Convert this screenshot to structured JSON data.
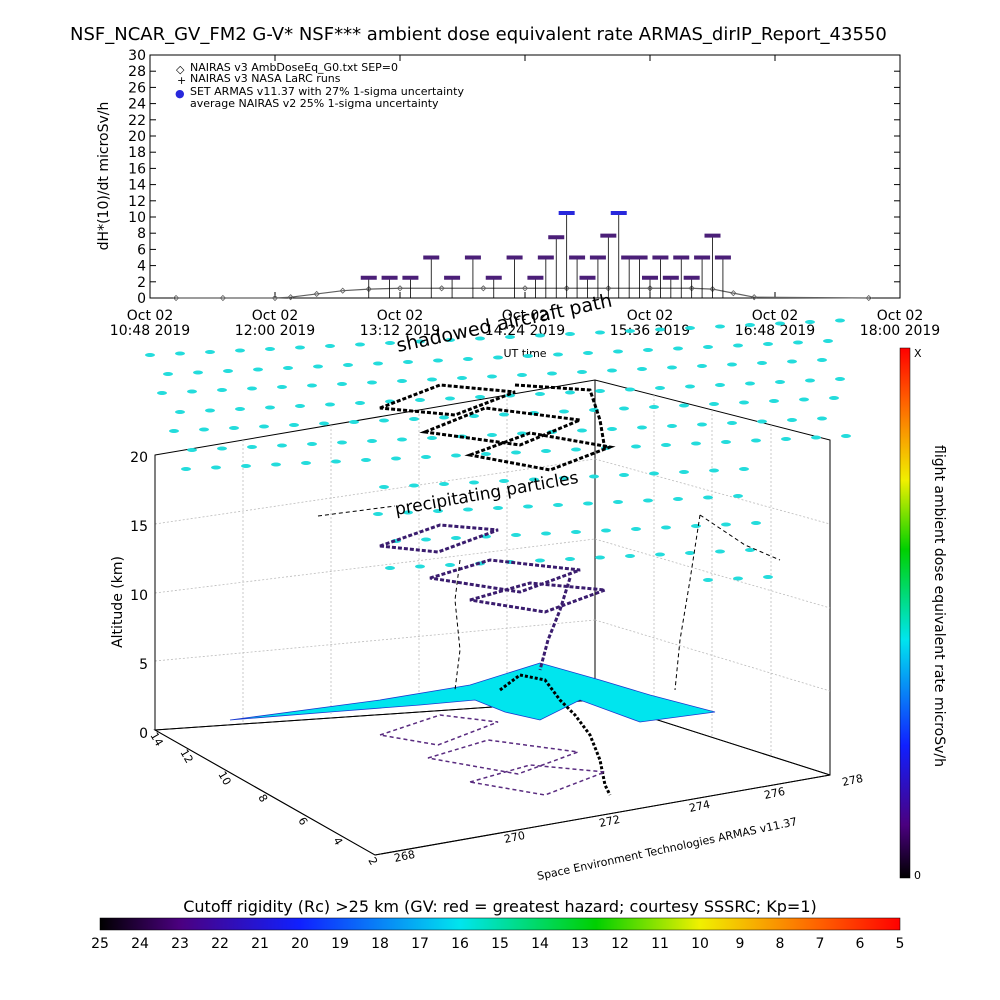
{
  "chart_data": [
    {
      "type": "scatter",
      "title": "NSF_NCAR_GV_FM2 G-V* NSF*** ambient dose equivalent rate ARMAS_dirIP_Report_43550",
      "ylabel": "dH*(10)/dt microSv/h",
      "xlabel": "UT time",
      "ylim": [
        0,
        30
      ],
      "yticks": [
        0,
        2,
        4,
        6,
        8,
        10,
        12,
        14,
        16,
        18,
        20,
        22,
        24,
        26,
        28,
        30
      ],
      "xticks": [
        {
          "l1": "Oct 02",
          "l2": "10:48 2019"
        },
        {
          "l1": "Oct 02",
          "l2": "12:00 2019"
        },
        {
          "l1": "Oct 02",
          "l2": "13:12 2019"
        },
        {
          "l1": "Oct 02",
          "l2": "14:24 2019"
        },
        {
          "l1": "Oct 02",
          "l2": "15:36 2019"
        },
        {
          "l1": "Oct 02",
          "l2": "16:48 2019"
        },
        {
          "l1": "Oct 02",
          "l2": "18:00 2019"
        }
      ],
      "xlim_hours": [
        10.8,
        18.0
      ],
      "legend": [
        {
          "symbol": "◇",
          "label": "NAIRAS v3 AmbDoseEq_G0.txt SEP=0"
        },
        {
          "symbol": "+",
          "label": "NAIRAS v3 NASA LaRC runs"
        },
        {
          "symbol": "●",
          "label": "SET ARMAS v11.37 with 27% 1-sigma uncertainty"
        },
        {
          "symbol": "",
          "label": "average NAIRAS v2 25% 1-sigma uncertainty"
        }
      ],
      "legend_position": "top-left",
      "series": [
        {
          "name": "NAIRAS v3 AmbDoseEq_G0.txt SEP=0",
          "x_hours": [
            11.05,
            11.5,
            12.0,
            12.15,
            12.4,
            12.65,
            12.9,
            13.2,
            13.6,
            14.0,
            14.4,
            14.8,
            15.2,
            15.6,
            16.0,
            16.2,
            16.4,
            16.6,
            17.7
          ],
          "y": [
            0,
            0,
            0,
            0.1,
            0.5,
            0.9,
            1.1,
            1.2,
            1.2,
            1.2,
            1.2,
            1.2,
            1.2,
            1.2,
            1.2,
            1.1,
            0.6,
            0.1,
            0
          ]
        },
        {
          "name": "SET ARMAS v11.37 with 27% 1-sigma uncertainty",
          "x_hours": [
            12.9,
            13.1,
            13.3,
            13.5,
            13.7,
            13.9,
            14.1,
            14.3,
            14.5,
            14.6,
            14.7,
            14.8,
            14.9,
            15.0,
            15.1,
            15.2,
            15.3,
            15.4,
            15.5,
            15.6,
            15.7,
            15.8,
            15.9,
            16.0,
            16.1,
            16.2,
            16.3
          ],
          "y": [
            2.5,
            2.5,
            2.5,
            5.0,
            2.5,
            5.0,
            2.5,
            5.0,
            2.5,
            5.0,
            7.5,
            10.5,
            5.0,
            2.5,
            5.0,
            7.7,
            10.5,
            5.0,
            5.0,
            2.5,
            5.0,
            2.5,
            5.0,
            2.5,
            5.0,
            7.7,
            5.0
          ]
        }
      ]
    },
    {
      "type": "scatter",
      "title": "",
      "zlabel": "Altitude (km)",
      "zticks": [
        "0",
        "5",
        "10",
        "15",
        "20"
      ],
      "xticks": [
        "268",
        "270",
        "272",
        "274",
        "276",
        "278"
      ],
      "yticks": [
        "2",
        "4",
        "6",
        "8",
        "10",
        "12",
        "14"
      ],
      "annotations": [
        "shadowed aircraft path",
        "precipitating particles"
      ],
      "credit": "Space Environment Technologies ARMAS v11.37",
      "colorbar_right": {
        "label": "flight ambient dose equivalent rate microSv/h",
        "top": "X",
        "bottom": "0"
      },
      "colorbar_bottom": {
        "label": "Cutoff rigidity (Rc) >25 km (GV: red = greatest hazard; courtesy SSSRC; Kp=1)",
        "ticks": [
          "25",
          "24",
          "23",
          "22",
          "21",
          "20",
          "19",
          "18",
          "17",
          "16",
          "15",
          "14",
          "13",
          "12",
          "11",
          "10",
          "9",
          "8",
          "7",
          "6",
          "5"
        ]
      }
    }
  ],
  "colors": {
    "armas": "#2828dc",
    "armas_dark": "#4b1f78",
    "nairas": "#606060",
    "ocean": "#00e5ee",
    "land_outline": "#1a3ad0",
    "precip": "#23dcdc"
  }
}
